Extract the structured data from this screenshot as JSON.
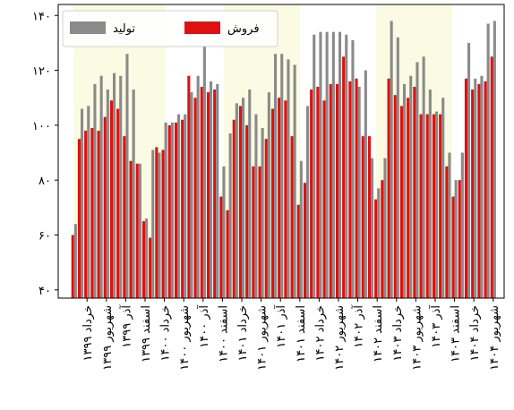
{
  "chart_data": {
    "type": "bar",
    "categories": [
      null,
      null,
      "خرداد ۱۳۹۹",
      null,
      null,
      "شهریور ۱۳۹۹",
      null,
      null,
      "آذر ۱۳۹۹",
      null,
      null,
      "اسفند ۱۳۹۹",
      null,
      null,
      "خرداد ۱۴۰۰",
      null,
      null,
      "شهریور ۱۴۰۰",
      null,
      null,
      "آذر ۱۴۰۰",
      null,
      null,
      "اسفند ۱۴۰۰",
      null,
      null,
      "خرداد ۱۴۰۱",
      null,
      null,
      "شهریور ۱۴۰۱",
      null,
      null,
      "آذر ۱۴۰۱",
      null,
      null,
      "اسفند ۱۴۰۱",
      null,
      null,
      "خرداد ۱۴۰۲",
      null,
      null,
      "شهریور ۱۴۰۲",
      null,
      null,
      "آذر ۱۴۰۲",
      null,
      null,
      "اسفند ۱۴۰۲",
      null,
      null,
      "خرداد ۱۴۰۳",
      null,
      null,
      "شهریور ۱۴۰۳",
      null,
      null,
      "آذر ۱۴۰۳",
      null,
      null,
      "اسفند ۱۴۰۳",
      null,
      null,
      "خرداد ۱۴۰۴",
      null,
      null,
      "شهریور ۱۴۰۴"
    ],
    "series": [
      {
        "name": "فروش",
        "color": "#e01010",
        "values": [
          60,
          95,
          98,
          99,
          98,
          103,
          109,
          106,
          96,
          87,
          86,
          65,
          59,
          92,
          91,
          100,
          101,
          102,
          118,
          110,
          114,
          112,
          113,
          74,
          69,
          102,
          107,
          100,
          85,
          85,
          95,
          106,
          110,
          109,
          96,
          71,
          79,
          113,
          114,
          109,
          115,
          115,
          125,
          116,
          117,
          96,
          96,
          73,
          80,
          117,
          111,
          107,
          110,
          114,
          104,
          104,
          104,
          104,
          85,
          74,
          80,
          117,
          113,
          115,
          116,
          125
        ]
      },
      {
        "name": "تولید",
        "color": "#8a8a8a",
        "values": [
          64,
          106,
          107,
          115,
          118,
          113,
          119,
          118,
          126,
          113,
          86,
          66,
          91,
          90,
          101,
          101,
          104,
          104,
          112,
          118,
          129,
          116,
          115,
          85,
          97,
          108,
          110,
          113,
          104,
          99,
          112,
          126,
          126,
          124,
          122,
          87,
          107,
          133,
          134,
          134,
          134,
          134,
          133,
          131,
          114,
          120,
          88,
          77,
          88,
          138,
          132,
          115,
          118,
          123,
          125,
          113,
          105,
          110,
          90,
          80,
          90,
          130,
          117,
          118,
          137,
          138
        ]
      }
    ],
    "ylim": [
      37,
      144
    ],
    "yticks": [
      {
        "value": 40,
        "label": "۴۰"
      },
      {
        "value": 60,
        "label": "۶۰"
      },
      {
        "value": 80,
        "label": "۸۰"
      },
      {
        "value": 100,
        "label": "۱۰۰"
      },
      {
        "value": 120,
        "label": "۱۲۰"
      },
      {
        "value": 140,
        "label": "۱۴۰"
      }
    ],
    "legend": "upper left"
  }
}
